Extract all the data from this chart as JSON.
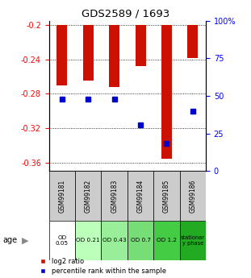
{
  "title": "GDS2589 / 1693",
  "samples": [
    "GSM99181",
    "GSM99182",
    "GSM99183",
    "GSM99184",
    "GSM99185",
    "GSM99186"
  ],
  "age_labels": [
    "OD\n0.05",
    "OD 0.21",
    "OD 0.43",
    "OD 0.7",
    "OD 1.2",
    "stationar\ny phase"
  ],
  "age_colors": [
    "#ffffff",
    "#bbffbb",
    "#99ee99",
    "#77dd77",
    "#44cc44",
    "#22aa22"
  ],
  "log2_values": [
    -0.27,
    -0.265,
    -0.272,
    -0.248,
    -0.356,
    -0.238
  ],
  "percentile_values": [
    0.48,
    0.48,
    0.48,
    0.305,
    0.185,
    0.4
  ],
  "ylim_left": [
    -0.37,
    -0.195
  ],
  "ylim_right": [
    0.0,
    1.0
  ],
  "yticks_left": [
    -0.36,
    -0.32,
    -0.28,
    -0.24,
    -0.2
  ],
  "ytick_labels_left": [
    "-0.36",
    "-0.32",
    "-0.28",
    "-0.24",
    "-0.2"
  ],
  "yticks_right": [
    0.0,
    0.25,
    0.5,
    0.75,
    1.0
  ],
  "ytick_labels_right": [
    "0",
    "25",
    "50",
    "75",
    "100%"
  ],
  "bar_color": "#cc1100",
  "marker_color": "#0000cc",
  "bar_width": 0.4,
  "figsize": [
    3.11,
    3.45
  ],
  "dpi": 100
}
